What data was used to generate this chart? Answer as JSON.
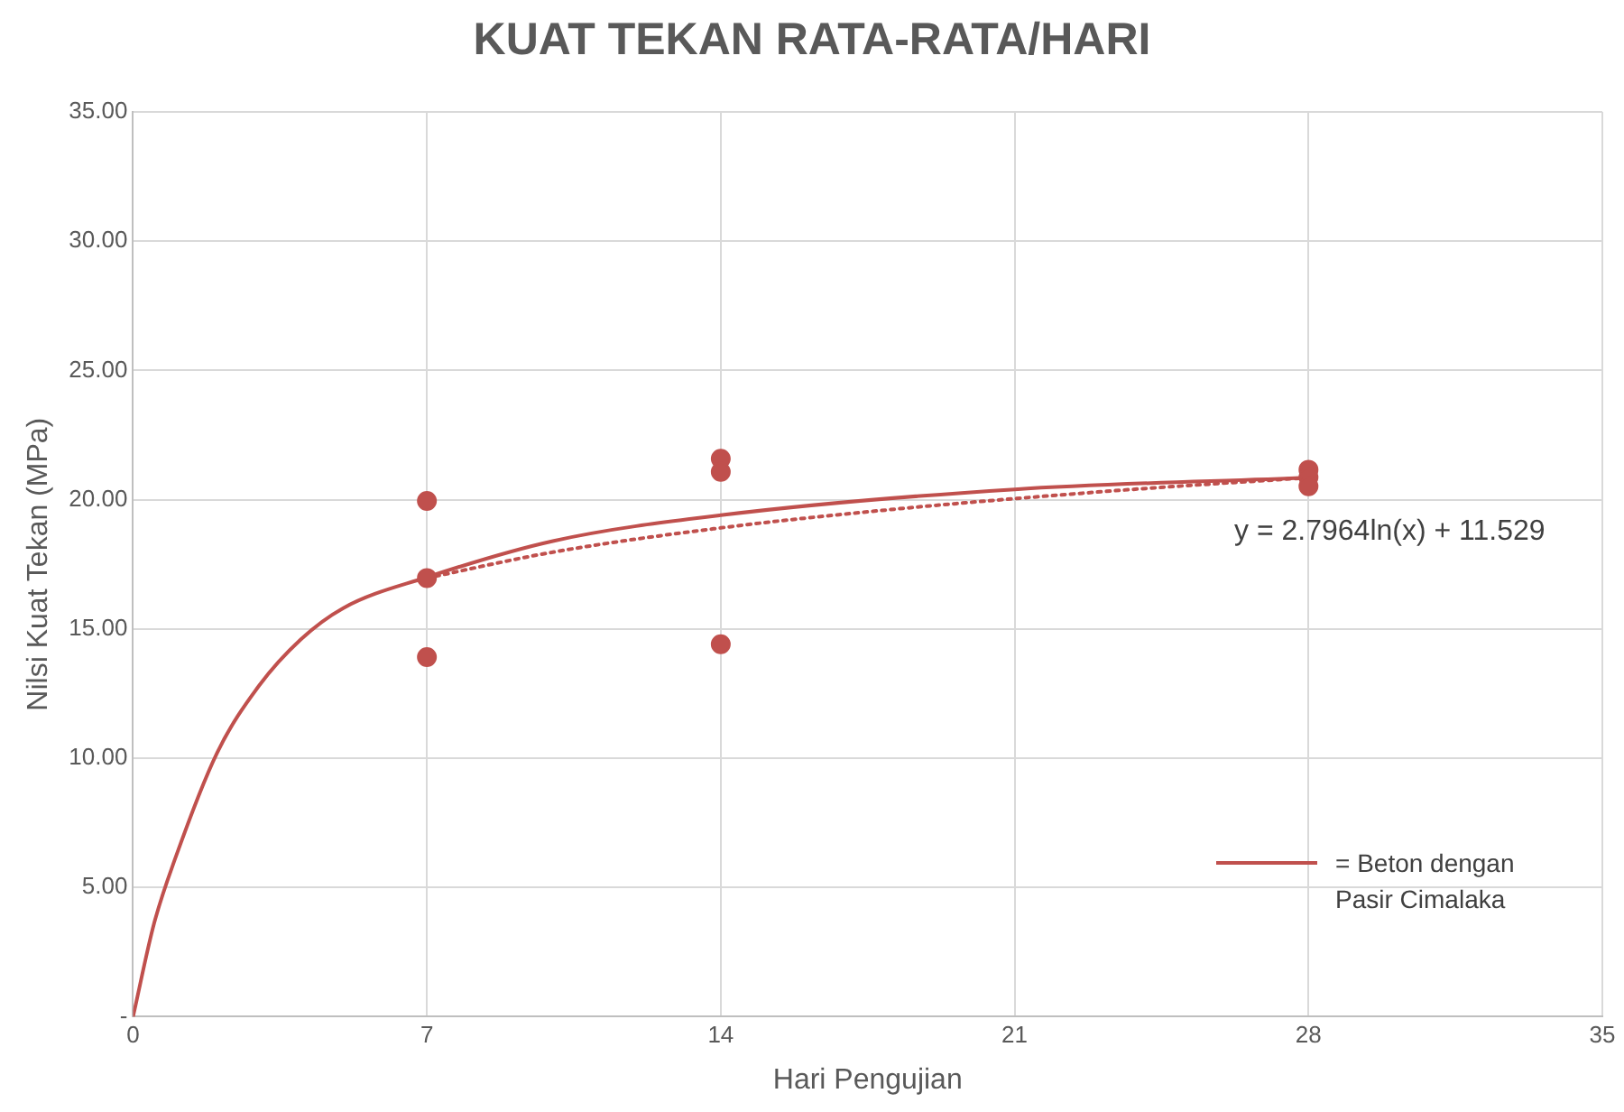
{
  "chart_data": {
    "type": "scatter",
    "title": "KUAT TEKAN RATA-RATA/HARI",
    "xlabel": "Hari Pengujian",
    "ylabel": "Nilsi Kuat Tekan (MPa)",
    "xlim": [
      0,
      35
    ],
    "xticks": [
      0,
      7,
      14,
      21,
      28,
      35
    ],
    "ylim": [
      0,
      35
    ],
    "yticks": [
      {
        "value": 0,
        "label": "-"
      },
      {
        "value": 5,
        "label": "5.00"
      },
      {
        "value": 10,
        "label": "10.00"
      },
      {
        "value": 15,
        "label": "15.00"
      },
      {
        "value": 20,
        "label": "20.00"
      },
      {
        "value": 25,
        "label": "25.00"
      },
      {
        "value": 30,
        "label": "30.00"
      },
      {
        "value": 35,
        "label": "35.00"
      }
    ],
    "grid": true,
    "legend": "bottom right",
    "annotations": [
      "y = 2.7964ln(x) + 11.529"
    ],
    "series": [
      {
        "color": "#c0504d",
        "marker": "circle",
        "x": [
          7,
          7,
          7,
          14,
          14,
          14,
          28,
          28,
          28
        ],
        "values": [
          19.95,
          16.97,
          13.91,
          21.58,
          21.08,
          14.41,
          21.16,
          20.87,
          20.52
        ]
      },
      {
        "type": "line",
        "name": "= Beton dengan Pasir Cimalaka",
        "color": "#c0504d",
        "marker": "none",
        "line_style": "solid",
        "x": [
          0,
          0.5,
          1,
          2,
          3,
          4,
          5,
          7,
          10,
          14,
          21,
          28
        ],
        "values": [
          0,
          3.6,
          6.1,
          10.2,
          12.8,
          14.6,
          15.8,
          17.0,
          18.4,
          19.4,
          20.4,
          20.85
        ]
      },
      {
        "type": "line",
        "color": "#c0504d",
        "marker": "none",
        "line_style": "dotted",
        "x": [
          7,
          10,
          14,
          18,
          21,
          24,
          28
        ],
        "values": [
          16.97,
          17.97,
          18.91,
          19.61,
          20.04,
          20.42,
          20.85
        ]
      }
    ]
  }
}
